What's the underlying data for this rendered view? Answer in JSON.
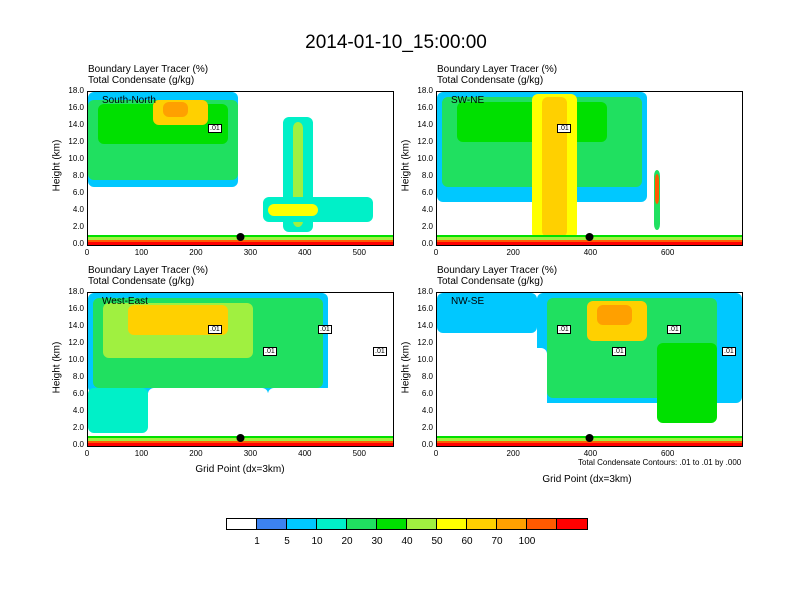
{
  "title": "2014-01-10_15:00:00",
  "panel_header": {
    "line1": "Boundary Layer Tracer   (%)",
    "line2": "Total Condensate   (g/kg)"
  },
  "ylabel": "Height (km)",
  "xlabel": "Grid Point (dx=3km)",
  "contour_note": "Total Condensate Contours: .01 to .01 by .000",
  "colorbar": {
    "colors": [
      "#ffffff",
      "#3c82f0",
      "#00c8ff",
      "#00f0c8",
      "#20e060",
      "#00e000",
      "#a0f040",
      "#ffff00",
      "#ffd000",
      "#ffa000",
      "#ff5a00",
      "#ff0000"
    ],
    "labels": [
      "1",
      "5",
      "10",
      "20",
      "30",
      "40",
      "50",
      "60",
      "70",
      "100"
    ]
  },
  "chart_data": [
    {
      "type": "heatmap",
      "name": "South-North",
      "ylim": [
        0,
        18
      ],
      "yticks": [
        "0.0",
        "2.0",
        "4.0",
        "6.0",
        "8.0",
        "10.0",
        "12.0",
        "14.0",
        "16.0",
        "18.0"
      ],
      "xlim": [
        0,
        560
      ],
      "xticks": [
        "0",
        "100",
        "200",
        "300",
        "400",
        "500"
      ],
      "xtick_values": [
        0,
        100,
        200,
        300,
        400,
        500
      ],
      "contour_labels": [
        ".01"
      ],
      "marker_x": 280
    },
    {
      "type": "heatmap",
      "name": "SW-NE",
      "ylim": [
        0,
        18
      ],
      "yticks": [
        "0.0",
        "2.0",
        "4.0",
        "6.0",
        "8.0",
        "10.0",
        "12.0",
        "14.0",
        "16.0",
        "18.0"
      ],
      "xlim": [
        0,
        790
      ],
      "xticks": [
        "0",
        "200",
        "400",
        "600"
      ],
      "xtick_values": [
        0,
        200,
        400,
        600
      ],
      "contour_labels": [
        ".01"
      ],
      "marker_x": 395
    },
    {
      "type": "heatmap",
      "name": "West-East",
      "ylim": [
        0,
        18
      ],
      "yticks": [
        "0.0",
        "2.0",
        "4.0",
        "6.0",
        "8.0",
        "10.0",
        "12.0",
        "14.0",
        "16.0",
        "18.0"
      ],
      "xlim": [
        0,
        560
      ],
      "xticks": [
        "0",
        "100",
        "200",
        "300",
        "400",
        "500"
      ],
      "xtick_values": [
        0,
        100,
        200,
        300,
        400,
        500
      ],
      "contour_labels": [
        ".01",
        ".01",
        ".01",
        ".01"
      ],
      "marker_x": 280
    },
    {
      "type": "heatmap",
      "name": "NW-SE",
      "ylim": [
        0,
        18
      ],
      "yticks": [
        "0.0",
        "2.0",
        "4.0",
        "6.0",
        "8.0",
        "10.0",
        "12.0",
        "14.0",
        "16.0",
        "18.0"
      ],
      "xlim": [
        0,
        790
      ],
      "xticks": [
        "0",
        "200",
        "400",
        "600"
      ],
      "xtick_values": [
        0,
        200,
        400,
        600
      ],
      "contour_labels": [
        ".01",
        ".01",
        ".01",
        ".01"
      ],
      "marker_x": 395
    }
  ]
}
